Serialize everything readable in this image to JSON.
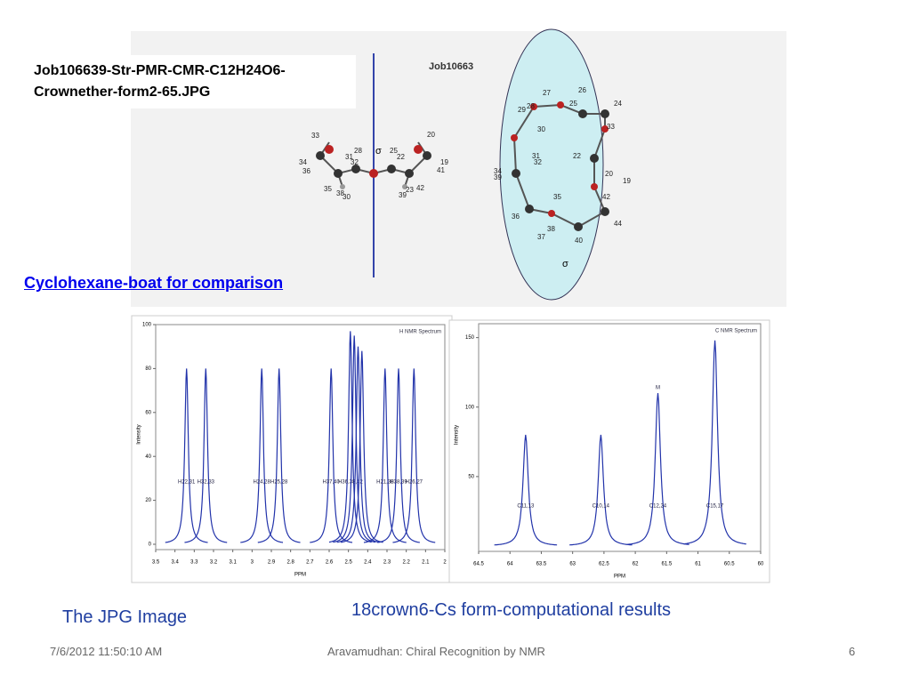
{
  "slide": {
    "molecule_caption": [
      "Job106639-Str-PMR-CMR-C12H24O6-",
      "Crownether-form2-65.JPG"
    ],
    "job_label": "Job10663",
    "sigma_left": "σ",
    "sigma_right": "σ",
    "left_atoms": [
      "33",
      "34",
      "36",
      "35",
      "38",
      "30",
      "28",
      "31",
      "32",
      "25",
      "22",
      "20",
      "19",
      "41",
      "42",
      "23",
      "39"
    ],
    "right_atoms": [
      "27",
      "26",
      "29",
      "28",
      "30",
      "25",
      "24",
      "31",
      "32",
      "33",
      "34",
      "35",
      "36",
      "37",
      "38",
      "39",
      "40",
      "22",
      "20",
      "19",
      "42",
      "44"
    ],
    "link": "Cyclohexane-boat for comparison",
    "jpg_caption": "The JPG Image",
    "results_caption": "18crown6-Cs form-computational results",
    "footer": {
      "date": "7/6/2012 11:50:10 AM",
      "center": "Aravamudhan: Chiral Recognition by NMR",
      "page": "6"
    },
    "spectra": [
      {
        "title": "H NMR Spectrum",
        "y_label": "Intensity",
        "x_label": "PPM",
        "xlim": [
          3.5,
          2
        ],
        "xticks": [
          3.5,
          3.4,
          3.3,
          3.2,
          3.1,
          3,
          2.9,
          2.8,
          2.7,
          2.6,
          2.5,
          2.4,
          2.3,
          2.2,
          2.1,
          2
        ],
        "ylim": [
          0,
          100
        ],
        "yticks": [
          0,
          20,
          40,
          60,
          80,
          100
        ],
        "peaks": {
          "ppm": [
            3.34,
            3.24,
            2.95,
            2.86,
            2.59,
            2.49,
            2.47,
            2.45,
            2.43,
            2.31,
            2.24,
            2.16
          ],
          "intensity": [
            80,
            80,
            80,
            80,
            80,
            97,
            95,
            90,
            88,
            80,
            80,
            80
          ],
          "labels": [
            "H22,31",
            "H32,33",
            "H24,28",
            "H25,28",
            "H37,40",
            "H36,38,42",
            null,
            null,
            null,
            "H21,38",
            "H38,39",
            "H26,27"
          ]
        },
        "marker": null
      },
      {
        "title": "C NMR Spectrum",
        "y_label": "Intensity",
        "x_label": "PPM",
        "xlim": [
          64.5,
          60
        ],
        "xticks": [
          64.5,
          64,
          63.5,
          63,
          62.5,
          62,
          61.5,
          61,
          60.5,
          60
        ],
        "ylim": [
          0,
          160
        ],
        "yticks": [
          50,
          100,
          150
        ],
        "peaks": {
          "ppm": [
            63.75,
            62.55,
            61.64,
            60.73
          ],
          "intensity": [
            80,
            80,
            110,
            148
          ],
          "labels": [
            "C11,13",
            "C10,14",
            "C12,24",
            "C15,17"
          ]
        },
        "marker": "M"
      }
    ]
  }
}
